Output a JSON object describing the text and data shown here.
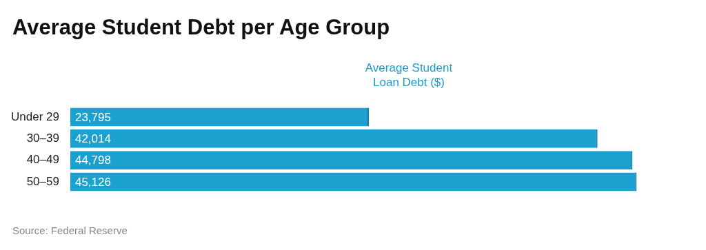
{
  "chart_data": {
    "type": "bar",
    "orientation": "horizontal",
    "title": "Average Student Debt per Age Group",
    "xlabel": "Average Student Loan Debt ($)",
    "categories": [
      "Under 29",
      "30–39",
      "40–49",
      "50–59"
    ],
    "values": [
      23795,
      42014,
      44798,
      45126
    ],
    "value_labels": [
      "23,795",
      "42,014",
      "44,798",
      "45,126"
    ],
    "color": "#1ba1d0",
    "tick_labels": "y",
    "annotations": [
      "Source: Federal Reserve"
    ]
  }
}
